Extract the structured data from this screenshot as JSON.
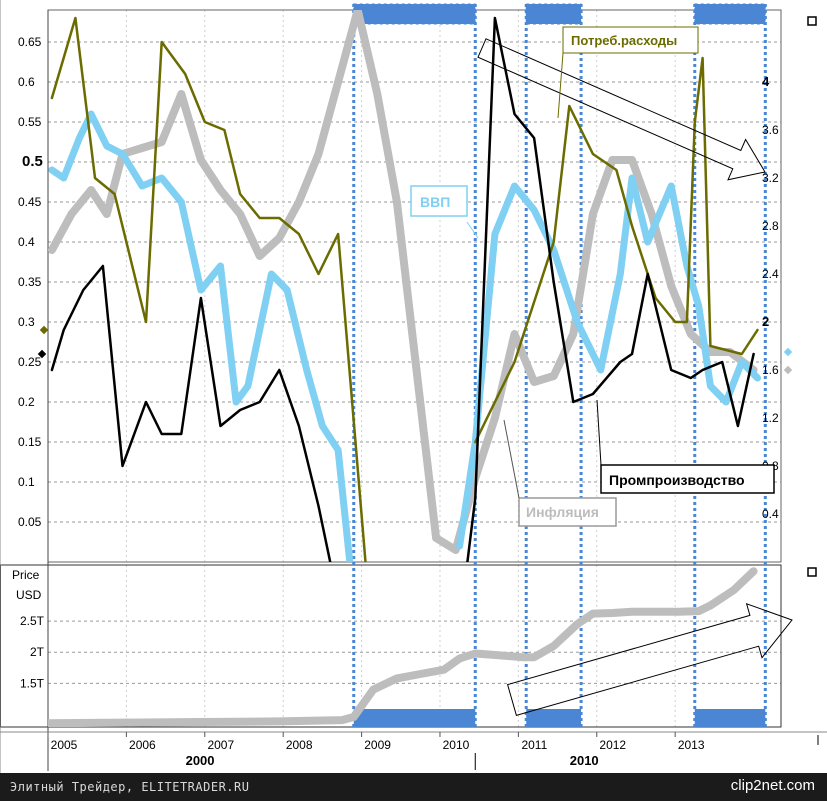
{
  "chart_data": {
    "type": "line",
    "top_panel": {
      "left_axis": {
        "ticks": [
          0.05,
          0.1,
          0.15,
          0.2,
          0.25,
          0.3,
          0.35,
          0.4,
          0.45,
          0.5,
          0.55,
          0.6,
          0.65
        ],
        "ylim": [
          0.0,
          0.69
        ]
      },
      "right_axis": {
        "ticks": [
          0.4,
          0.8,
          1.2,
          1.6,
          2.0,
          2.4,
          2.8,
          3.2,
          3.6,
          4.0
        ],
        "ylim": [
          0.0,
          4.6
        ]
      },
      "series": [
        {
          "name": "Потреб.расходы",
          "label": "Потреб.расходы",
          "axis": "left",
          "color": "#6b6b00",
          "x": [
            2004.6,
            2004.9,
            2005.15,
            2005.4,
            2005.8,
            2006.0,
            2006.3,
            2006.55,
            2006.8,
            2007.0,
            2007.25,
            2007.5,
            2007.75,
            2008.0,
            2008.25,
            2008.6
          ],
          "y": [
            0.58,
            0.68,
            0.48,
            0.46,
            0.3,
            0.65,
            0.61,
            0.55,
            0.54,
            0.46,
            0.43,
            0.43,
            0.41,
            0.36,
            0.41,
            0.0
          ]
        },
        {
          "name": "Потреб.расходы",
          "axis": "left",
          "color": "#6b6b00",
          "x": [
            2010.0,
            2010.5,
            2011.0,
            2011.2,
            2011.5,
            2011.8,
            2012.0,
            2012.3,
            2012.55,
            2012.7,
            2012.8,
            2012.9,
            2013.0,
            2013.4,
            2013.6
          ],
          "y": [
            0.15,
            0.25,
            0.4,
            0.57,
            0.51,
            0.49,
            0.42,
            0.33,
            0.3,
            0.3,
            0.55,
            0.63,
            0.27,
            0.26,
            0.29
          ]
        },
        {
          "name": "ВВП",
          "label": "ВВП",
          "axis": "left",
          "color": "#7fd0f2",
          "x": [
            2004.6,
            2004.75,
            2004.95,
            2005.1,
            2005.3,
            2005.5,
            2005.75,
            2006.0,
            2006.25,
            2006.5,
            2006.75,
            2006.95,
            2007.1,
            2007.4,
            2007.6,
            2007.85,
            2008.05,
            2008.25,
            2008.4
          ],
          "y": [
            0.49,
            0.48,
            0.53,
            0.56,
            0.52,
            0.51,
            0.47,
            0.48,
            0.45,
            0.34,
            0.37,
            0.2,
            0.22,
            0.36,
            0.34,
            0.24,
            0.17,
            0.14,
            0.0
          ]
        },
        {
          "name": "ВВП",
          "axis": "left",
          "color": "#7fd0f2",
          "x": [
            2009.8,
            2010.0,
            2010.25,
            2010.5,
            2010.75,
            2011.0,
            2011.3,
            2011.6,
            2011.85,
            2012.0,
            2012.2,
            2012.5,
            2012.7,
            2012.85,
            2013.0,
            2013.2,
            2013.4,
            2013.6
          ],
          "y": [
            0.02,
            0.15,
            0.41,
            0.47,
            0.44,
            0.39,
            0.3,
            0.24,
            0.36,
            0.48,
            0.4,
            0.47,
            0.37,
            0.32,
            0.22,
            0.2,
            0.25,
            0.23
          ]
        },
        {
          "name": "Промпроизводство",
          "label": "Промпроизводство",
          "axis": "left",
          "color": "#000000",
          "x": [
            2004.6,
            2004.75,
            2005.0,
            2005.25,
            2005.5,
            2005.8,
            2006.0,
            2006.25,
            2006.5,
            2006.75,
            2007.0,
            2007.25,
            2007.5,
            2007.75,
            2008.0,
            2008.15
          ],
          "y": [
            0.24,
            0.29,
            0.34,
            0.37,
            0.12,
            0.2,
            0.16,
            0.16,
            0.33,
            0.17,
            0.19,
            0.2,
            0.24,
            0.17,
            0.07,
            0.0
          ]
        },
        {
          "name": "Промпроизводство",
          "axis": "left",
          "color": "#000000",
          "x": [
            2009.9,
            2010.0,
            2010.25,
            2010.5,
            2010.75,
            2011.0,
            2011.25,
            2011.5,
            2011.85,
            2012.0,
            2012.2,
            2012.5,
            2012.75,
            2012.9,
            2013.15,
            2013.35,
            2013.55
          ],
          "y": [
            0.0,
            0.08,
            0.68,
            0.56,
            0.53,
            0.35,
            0.2,
            0.21,
            0.25,
            0.26,
            0.36,
            0.24,
            0.23,
            0.24,
            0.25,
            0.17,
            0.26
          ]
        },
        {
          "name": "Инфляция",
          "label": "Инфляция",
          "axis": "right",
          "color": "#bdbdbd",
          "x": [
            2004.6,
            2004.85,
            2005.1,
            2005.3,
            2005.5,
            2005.75,
            2006.0,
            2006.25,
            2006.5,
            2006.75,
            2007.0,
            2007.25,
            2007.5,
            2007.75,
            2008.0,
            2008.25,
            2008.5,
            2008.75,
            2009.0,
            2009.25,
            2009.5,
            2009.75,
            2010.0,
            2010.25,
            2010.5,
            2010.75,
            2011.0,
            2011.25,
            2011.5,
            2011.75,
            2012.0,
            2012.25,
            2012.5,
            2012.75,
            2013.0,
            2013.25,
            2013.55
          ],
          "y": [
            2.6,
            2.9,
            3.1,
            2.9,
            3.4,
            3.45,
            3.5,
            3.9,
            3.35,
            3.1,
            2.9,
            2.55,
            2.7,
            3.0,
            3.4,
            4.0,
            4.6,
            3.9,
            3.0,
            1.6,
            0.2,
            0.1,
            0.7,
            1.2,
            1.9,
            1.5,
            1.55,
            1.9,
            2.9,
            3.35,
            3.35,
            2.9,
            2.3,
            1.9,
            1.75,
            1.75,
            1.6
          ]
        }
      ],
      "extra_ticks": {
        "left_dots": [
          0.29,
          0.26
        ],
        "right_dots": [
          1.6,
          1.75
        ]
      }
    },
    "bottom_panel": {
      "title": "Price",
      "unit": "USD",
      "ticks": [
        {
          "label": "1.5T",
          "value": 1.5
        },
        {
          "label": "2T",
          "value": 2.0
        },
        {
          "label": "2.5T",
          "value": 2.5
        }
      ],
      "ylim": [
        0.8,
        3.4
      ],
      "series": [
        {
          "name": "Price",
          "color": "#bdbdbd",
          "x": [
            2004.55,
            2005.5,
            2006.5,
            2007.5,
            2008.3,
            2008.45,
            2008.7,
            2009.0,
            2009.3,
            2009.6,
            2009.8,
            2010.0,
            2010.3,
            2010.6,
            2010.75,
            2011.0,
            2011.3,
            2011.5,
            2011.75,
            2012.0,
            2012.3,
            2012.6,
            2012.85,
            2013.0,
            2013.3,
            2013.55
          ],
          "y": [
            0.86,
            0.87,
            0.88,
            0.89,
            0.91,
            0.96,
            1.4,
            1.58,
            1.65,
            1.72,
            1.9,
            1.98,
            1.95,
            1.92,
            1.92,
            2.1,
            2.45,
            2.62,
            2.63,
            2.65,
            2.65,
            2.65,
            2.66,
            2.75,
            3.0,
            3.3
          ]
        }
      ]
    },
    "x_axis": {
      "tick_labels": [
        "2005",
        "2006",
        "2007",
        "2008",
        "2009",
        "2010",
        "2011",
        "2012",
        "2013"
      ],
      "xlim": [
        2004.55,
        2013.9
      ],
      "group_labels": [
        {
          "label": "2000",
          "center": 2007.0
        },
        {
          "label": "2010",
          "center": 2011.9
        }
      ],
      "divider_x": 2010.0
    },
    "highlight_bands": [
      {
        "start": 2008.45,
        "end": 2010.0
      },
      {
        "start": 2010.65,
        "end": 2011.35
      },
      {
        "start": 2012.8,
        "end": 2013.7
      }
    ],
    "annotations": [
      {
        "text": "Потреб.расходы",
        "target": "consumption"
      },
      {
        "text": "ВВП",
        "target": "gdp"
      },
      {
        "text": "Инфляция",
        "target": "inflation"
      },
      {
        "text": "Промпроизводство",
        "target": "industrial"
      }
    ],
    "colors": {
      "consumption": "#6b6b00",
      "gdp": "#7fd0f2",
      "industrial": "#000000",
      "inflation": "#bdbdbd",
      "band": "#4a86d4",
      "grid": "#9a9a9a"
    }
  },
  "footer": {
    "caption": "Элитный Трейдер, ELITETRADER.RU",
    "logo": "clip2net.com"
  }
}
